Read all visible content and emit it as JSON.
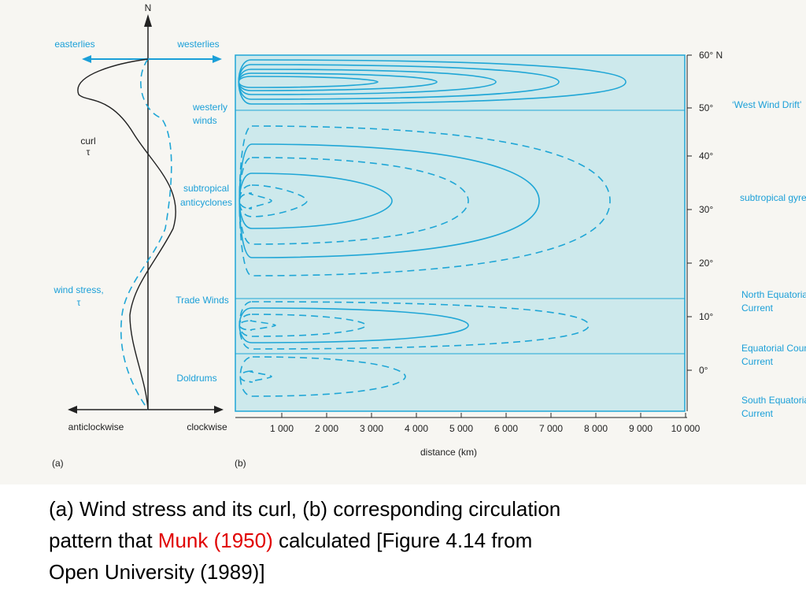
{
  "panel_a": {
    "north": "N",
    "easterlies": "easterlies",
    "westerlies": "westerlies",
    "curl_label": "curl",
    "curl_symbol": "τ",
    "westerly_winds": [
      "westerly",
      "winds"
    ],
    "subtropical_anticyclones": [
      "subtropical",
      "anticyclones"
    ],
    "wind_stress": [
      "wind stress,",
      "τ"
    ],
    "trade_winds": "Trade Winds",
    "doldrums": "Doldrums",
    "anticlockwise": "anticlockwise",
    "clockwise": "clockwise",
    "panel_label": "(a)"
  },
  "panel_b": {
    "panel_label": "(b)",
    "latitudes": [
      "60° N",
      "50°",
      "40°",
      "30°",
      "20°",
      "10°",
      "0°"
    ],
    "distance_ticks": [
      "1 000",
      "2 000",
      "3 000",
      "4 000",
      "5 000",
      "6 000",
      "7 000",
      "8 000",
      "9 000",
      "10 000"
    ],
    "x_label": "distance (km)",
    "currents": [
      "‘West Wind Drift’",
      "subtropical gyre",
      [
        "North Equatorial",
        "Current"
      ],
      [
        "Equatorial Counter",
        "Current"
      ],
      [
        "South Equatorial",
        "Current"
      ]
    ]
  },
  "caption": {
    "line1": "(a) Wind stress and its curl, (b) corresponding circulation",
    "line2_before": "pattern that",
    "line2_highlight": "Munk (1950)",
    "line2_after": "calculated [Figure 4.14 from",
    "line3": "Open University (1989)]"
  }
}
